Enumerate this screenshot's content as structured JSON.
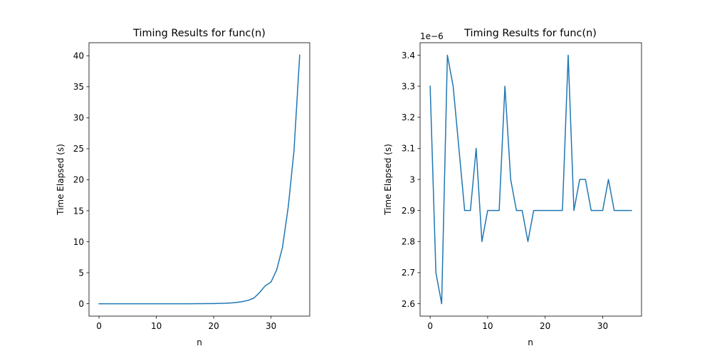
{
  "chart_data": [
    {
      "type": "line",
      "title": "Timing Results for func(n)",
      "xlabel": "n",
      "ylabel": "Time Elapsed (s)",
      "xlim": [
        -1.75,
        36.75
      ],
      "ylim": [
        -2.0,
        42.1
      ],
      "xticks": [
        0,
        10,
        20,
        30
      ],
      "yticks": [
        0,
        5,
        10,
        15,
        20,
        25,
        30,
        35,
        40
      ],
      "offset_text": "",
      "grid": false,
      "line_color": "#1f77b4",
      "series": [
        {
          "x": [
            0,
            1,
            2,
            3,
            4,
            5,
            6,
            7,
            8,
            9,
            10,
            11,
            12,
            13,
            14,
            15,
            16,
            17,
            18,
            19,
            20,
            21,
            22,
            23,
            24,
            25,
            26,
            27,
            28,
            29,
            30,
            31,
            32,
            33,
            34,
            35
          ],
          "y": [
            0,
            0,
            0,
            0,
            0,
            0,
            0,
            0,
            0,
            0,
            0,
            0,
            0,
            0,
            0,
            0,
            0,
            0.01,
            0.01,
            0.02,
            0.03,
            0.05,
            0.08,
            0.13,
            0.21,
            0.34,
            0.55,
            0.9,
            1.8,
            2.9,
            3.5,
            5.5,
            9.1,
            15.6,
            24.6,
            40.1
          ]
        }
      ]
    },
    {
      "type": "line",
      "title": "Timing Results for func(n)",
      "xlabel": "n",
      "ylabel": "Time Elapsed (s)",
      "xlim": [
        -1.75,
        36.75
      ],
      "ylim": [
        2.56,
        3.44
      ],
      "xticks": [
        0,
        10,
        20,
        30
      ],
      "yticks": [
        2.6,
        2.7,
        2.8,
        2.9,
        3.0,
        3.1,
        3.2,
        3.3,
        3.4
      ],
      "offset_text": "1e−6",
      "grid": false,
      "line_color": "#1f77b4",
      "series": [
        {
          "x": [
            0,
            1,
            2,
            3,
            4,
            5,
            6,
            7,
            8,
            9,
            10,
            11,
            12,
            13,
            14,
            15,
            16,
            17,
            18,
            19,
            20,
            21,
            22,
            23,
            24,
            25,
            26,
            27,
            28,
            29,
            30,
            31,
            32,
            33,
            34,
            35
          ],
          "y": [
            3.3,
            2.7,
            2.6,
            3.4,
            3.3,
            3.1,
            2.9,
            2.9,
            3.1,
            2.8,
            2.9,
            2.9,
            2.9,
            3.3,
            3.0,
            2.9,
            2.9,
            2.8,
            2.9,
            2.9,
            2.9,
            2.9,
            2.9,
            2.9,
            3.4,
            2.9,
            3.0,
            3.0,
            2.9,
            2.9,
            2.9,
            3.0,
            2.9,
            2.9,
            2.9,
            2.9
          ]
        }
      ]
    }
  ]
}
